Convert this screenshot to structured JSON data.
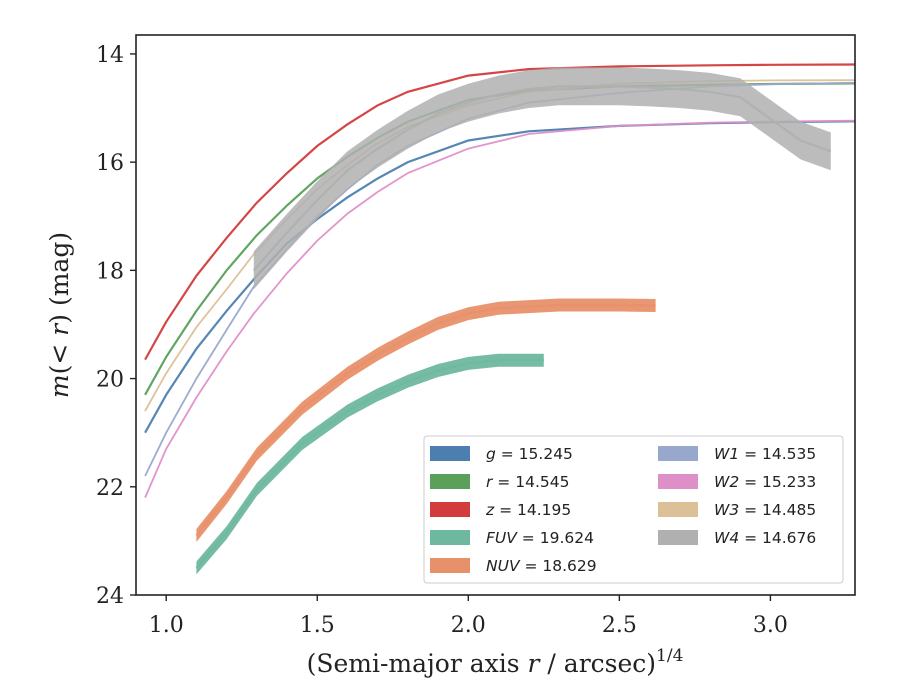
{
  "chart_data": {
    "type": "line",
    "title": "",
    "xlabel": "(Semi-major axis r / arcsec)^1/4",
    "ylabel": "m(< r) (mag)",
    "xlim": [
      0.9,
      3.28
    ],
    "ylim": [
      24,
      13.65
    ],
    "y_inverted": true,
    "x_ticks": [
      1.0,
      1.5,
      2.0,
      2.5,
      3.0
    ],
    "x_tick_labels": [
      "1.0",
      "1.5",
      "2.0",
      "2.5",
      "3.0"
    ],
    "y_ticks": [
      14,
      16,
      18,
      20,
      22,
      24
    ],
    "y_tick_labels": [
      "14",
      "16",
      "18",
      "20",
      "22",
      "24"
    ],
    "grid": false,
    "legend_position": "lower-right",
    "series": [
      {
        "name": "g",
        "legend": "g = 15.245",
        "color": "#4c7fb0",
        "total": 15.245,
        "x": [
          0.93,
          1.0,
          1.1,
          1.2,
          1.3,
          1.4,
          1.5,
          1.6,
          1.7,
          1.8,
          2.0,
          2.2,
          2.5,
          2.8,
          3.0,
          3.28
        ],
        "y": [
          21.0,
          20.3,
          19.45,
          18.75,
          18.1,
          17.5,
          17.05,
          16.65,
          16.3,
          16.0,
          15.6,
          15.43,
          15.33,
          15.28,
          15.26,
          15.245
        ]
      },
      {
        "name": "r",
        "legend": "r = 14.545",
        "color": "#5aa05a",
        "total": 14.545,
        "x": [
          0.93,
          1.0,
          1.1,
          1.2,
          1.3,
          1.4,
          1.5,
          1.6,
          1.7,
          1.8,
          2.0,
          2.2,
          2.5,
          2.8,
          3.0,
          3.28
        ],
        "y": [
          20.3,
          19.6,
          18.75,
          18.0,
          17.35,
          16.8,
          16.3,
          15.9,
          15.55,
          15.25,
          14.85,
          14.68,
          14.6,
          14.57,
          14.555,
          14.545
        ]
      },
      {
        "name": "z",
        "legend": "z = 14.195",
        "color": "#d23c3c",
        "total": 14.195,
        "x": [
          0.93,
          1.0,
          1.1,
          1.2,
          1.3,
          1.4,
          1.5,
          1.6,
          1.7,
          1.8,
          2.0,
          2.2,
          2.5,
          2.8,
          3.0,
          3.28
        ],
        "y": [
          19.65,
          18.95,
          18.1,
          17.4,
          16.75,
          16.2,
          15.7,
          15.3,
          14.95,
          14.7,
          14.4,
          14.28,
          14.23,
          14.21,
          14.2,
          14.195
        ]
      },
      {
        "name": "FUV",
        "legend": "FUV = 19.624",
        "color": "#6fb8a0",
        "total": 19.624,
        "x": [
          1.1,
          1.2,
          1.3,
          1.45,
          1.6,
          1.7,
          1.8,
          1.9,
          2.0,
          2.1,
          2.25
        ],
        "y": [
          23.5,
          22.85,
          22.05,
          21.2,
          20.6,
          20.3,
          20.05,
          19.85,
          19.72,
          19.66,
          19.66
        ]
      },
      {
        "name": "NUV",
        "legend": "NUV = 18.629",
        "color": "#e8906a",
        "total": 18.629,
        "x": [
          1.1,
          1.2,
          1.3,
          1.45,
          1.6,
          1.7,
          1.8,
          1.9,
          2.0,
          2.1,
          2.3,
          2.5,
          2.62
        ],
        "y": [
          22.9,
          22.2,
          21.4,
          20.55,
          19.9,
          19.55,
          19.25,
          18.98,
          18.8,
          18.7,
          18.64,
          18.64,
          18.65
        ]
      },
      {
        "name": "W1",
        "legend": "W1 = 14.535",
        "color": "#98a8cc",
        "total": 14.535,
        "x": [
          0.93,
          1.0,
          1.1,
          1.2,
          1.29,
          1.4,
          1.5,
          1.6,
          1.7,
          1.8,
          2.0,
          2.2,
          2.5,
          2.8,
          3.0,
          3.28
        ],
        "y": [
          21.8,
          21.0,
          20.0,
          19.1,
          18.3,
          17.6,
          17.0,
          16.5,
          16.05,
          15.7,
          15.2,
          14.9,
          14.72,
          14.6,
          14.56,
          14.535
        ]
      },
      {
        "name": "W2",
        "legend": "W2 = 15.233",
        "color": "#df8fc8",
        "total": 15.233,
        "x": [
          0.93,
          1.0,
          1.1,
          1.2,
          1.29,
          1.4,
          1.5,
          1.6,
          1.7,
          1.8,
          2.0,
          2.2,
          2.5,
          2.8,
          3.0,
          3.28
        ],
        "y": [
          22.2,
          21.3,
          20.35,
          19.5,
          18.8,
          18.05,
          17.45,
          16.95,
          16.55,
          16.2,
          15.75,
          15.48,
          15.33,
          15.27,
          15.25,
          15.233
        ]
      },
      {
        "name": "W3",
        "legend": "W3 = 14.485",
        "color": "#dcc098",
        "total": 14.485,
        "x": [
          0.93,
          1.0,
          1.1,
          1.2,
          1.29,
          1.4,
          1.5,
          1.6,
          1.7,
          1.8,
          2.0,
          2.2,
          2.5,
          2.8,
          3.0,
          3.28
        ],
        "y": [
          20.6,
          19.9,
          19.05,
          18.35,
          17.7,
          17.05,
          16.5,
          16.05,
          15.65,
          15.35,
          14.95,
          14.7,
          14.55,
          14.5,
          14.49,
          14.485
        ]
      },
      {
        "name": "W4",
        "legend": "W4 = 14.676",
        "color": "#b0b0b0",
        "total": 14.676,
        "x": [
          1.29,
          1.4,
          1.5,
          1.6,
          1.7,
          1.8,
          1.9,
          2.0,
          2.1,
          2.2,
          2.3,
          2.4,
          2.5,
          2.6,
          2.7,
          2.8,
          2.9,
          3.0,
          3.1,
          3.2
        ],
        "y": [
          18.0,
          17.3,
          16.7,
          16.15,
          15.75,
          15.4,
          15.1,
          14.9,
          14.75,
          14.65,
          14.6,
          14.6,
          14.6,
          14.62,
          14.65,
          14.7,
          14.8,
          15.2,
          15.6,
          15.8
        ]
      }
    ]
  }
}
